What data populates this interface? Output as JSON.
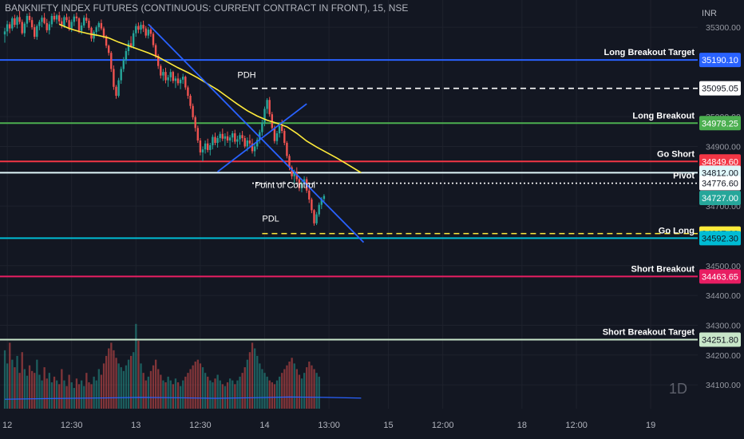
{
  "title": "BANKNIFTY INDEX FUTURES (CONTINUOUS: CURRENT CONTRACT IN FRONT), 15, NSE",
  "currency": "INR",
  "interval_watermark": "1D",
  "colors": {
    "background": "#131722",
    "grid": "#1e222d",
    "axis_text": "#b2b5be",
    "up": "#26a69a",
    "down": "#ef5350",
    "ma": "#ffeb3b",
    "trendline": "#2962ff",
    "volume_ma": "#2962ff"
  },
  "chart_data": {
    "type": "candlestick",
    "title": "BANKNIFTY INDEX FUTURES (CONTINUOUS: CURRENT CONTRACT IN FRONT), 15, NSE",
    "y_axis": {
      "ticks": [
        35300,
        35000,
        34900,
        34700,
        34500,
        34400,
        34300,
        34200,
        34100
      ],
      "tick_labels": [
        "35300.00",
        "35000.00",
        "34900.00",
        "34700.00",
        "34500.00",
        "34400.00",
        "34300.00",
        "34200.00",
        "34100.00"
      ],
      "ylim": [
        34020,
        35370
      ]
    },
    "x_axis": {
      "ticks": [
        "12",
        "12:30",
        "13",
        "12:30",
        "14",
        "13:00",
        "15",
        "12:00",
        "18",
        "12:00",
        "19"
      ],
      "tick_index": [
        1,
        27,
        53,
        79,
        105,
        131,
        155,
        177,
        209,
        231,
        261
      ]
    },
    "levels": [
      {
        "name": "Long Breakout Target",
        "value": 35190.1,
        "label": "35190.10",
        "color": "#2962ff",
        "style": "solid"
      },
      {
        "name": "PDH",
        "value": 35095.05,
        "label": "35095.05",
        "color": "#ffffff",
        "style": "dashed",
        "start_index": 100
      },
      {
        "name": "Long Breakout",
        "value": 34978.25,
        "label": "34978.25",
        "color": "#4caf50",
        "style": "solid"
      },
      {
        "name": "Go Short",
        "value": 34849.6,
        "label": "34849.60",
        "color": "#f23645",
        "style": "solid"
      },
      {
        "name": "",
        "value": 34812.0,
        "label": "34812.00",
        "color": "#e0f7fa",
        "style": "solid"
      },
      {
        "name": "Pivot",
        "value": 34776.6,
        "label": "34776.60",
        "color": "#ffffff",
        "style": "dotted",
        "start_index": 100
      },
      {
        "name": "",
        "value": 34727.0,
        "label": "34727.00",
        "color": "#26a69a",
        "style": "none"
      },
      {
        "name": "PDL",
        "value": 34607.6,
        "label": "34607.60",
        "color": "#ffeb3b",
        "style": "dashed",
        "start_index": 104
      },
      {
        "name": "Go Long",
        "value": 34592.3,
        "label": "34592.30",
        "color": "#00bcd4",
        "style": "solid"
      },
      {
        "name": "Short Breakout",
        "value": 34463.65,
        "label": "34463.65",
        "color": "#e91e63",
        "style": "solid"
      },
      {
        "name": "Short Breakout Target",
        "value": 34251.8,
        "label": "34251.80",
        "color": "#c8e6c9",
        "style": "solid"
      }
    ],
    "annotations": [
      {
        "text": "Point of Control",
        "index": 101,
        "value": 34760
      },
      {
        "text": "PDH",
        "index": 94,
        "value": 35130
      },
      {
        "text": "PDL",
        "index": 104,
        "value": 34648
      }
    ],
    "trendlines": [
      {
        "from": [
          58,
          35310
        ],
        "to": [
          145,
          34578
        ]
      },
      {
        "from": [
          86,
          34815
        ],
        "to": [
          122,
          35043
        ]
      }
    ],
    "candles": [
      [
        35276,
        35298,
        35248,
        35286
      ],
      [
        35286,
        35322,
        35270,
        35310
      ],
      [
        35310,
        35318,
        35280,
        35296
      ],
      [
        35296,
        35336,
        35288,
        35330
      ],
      [
        35330,
        35342,
        35300,
        35308
      ],
      [
        35308,
        35340,
        35296,
        35334
      ],
      [
        35334,
        35355,
        35310,
        35318
      ],
      [
        35318,
        35326,
        35275,
        35280
      ],
      [
        35280,
        35318,
        35268,
        35312
      ],
      [
        35312,
        35346,
        35300,
        35338
      ],
      [
        35338,
        35350,
        35316,
        35324
      ],
      [
        35324,
        35334,
        35292,
        35300
      ],
      [
        35300,
        35310,
        35260,
        35268
      ],
      [
        35268,
        35310,
        35258,
        35304
      ],
      [
        35304,
        35325,
        35290,
        35318
      ],
      [
        35318,
        35340,
        35300,
        35332
      ],
      [
        35332,
        35348,
        35310,
        35314
      ],
      [
        35314,
        35328,
        35282,
        35290
      ],
      [
        35290,
        35320,
        35276,
        35310
      ],
      [
        35310,
        35346,
        35300,
        35338
      ],
      [
        35338,
        35350,
        35318,
        35326
      ],
      [
        35326,
        35345,
        35312,
        35340
      ],
      [
        35340,
        35352,
        35310,
        35320
      ],
      [
        35320,
        35332,
        35296,
        35304
      ],
      [
        35304,
        35340,
        35298,
        35334
      ],
      [
        35334,
        35346,
        35316,
        35324
      ],
      [
        35324,
        35336,
        35288,
        35296
      ],
      [
        35296,
        35326,
        35284,
        35318
      ],
      [
        35318,
        35344,
        35304,
        35336
      ],
      [
        35336,
        35349,
        35320,
        35330
      ],
      [
        35330,
        35334,
        35280,
        35288
      ],
      [
        35288,
        35316,
        35276,
        35306
      ],
      [
        35306,
        35340,
        35298,
        35332
      ],
      [
        35332,
        35346,
        35314,
        35322
      ],
      [
        35322,
        35330,
        35290,
        35298
      ],
      [
        35298,
        35302,
        35252,
        35262
      ],
      [
        35262,
        35290,
        35250,
        35284
      ],
      [
        35284,
        35306,
        35270,
        35300
      ],
      [
        35300,
        35320,
        35286,
        35314
      ],
      [
        35314,
        35326,
        35290,
        35296
      ],
      [
        35296,
        35302,
        35262,
        35270
      ],
      [
        35270,
        35274,
        35230,
        35238
      ],
      [
        35238,
        35242,
        35205,
        35214
      ],
      [
        35214,
        35220,
        35150,
        35160
      ],
      [
        35160,
        35172,
        35090,
        35100
      ],
      [
        35100,
        35106,
        35060,
        35070
      ],
      [
        35070,
        35130,
        35064,
        35122
      ],
      [
        35122,
        35168,
        35110,
        35160
      ],
      [
        35160,
        35200,
        35150,
        35190
      ],
      [
        35190,
        35230,
        35176,
        35220
      ],
      [
        35220,
        35256,
        35206,
        35246
      ],
      [
        35246,
        35270,
        35230,
        35236
      ],
      [
        35236,
        35290,
        35228,
        35280
      ],
      [
        35280,
        35312,
        35268,
        35304
      ],
      [
        35304,
        35316,
        35280,
        35292
      ],
      [
        35292,
        35318,
        35278,
        35308
      ],
      [
        35308,
        35322,
        35284,
        35296
      ],
      [
        35296,
        35304,
        35264,
        35272
      ],
      [
        35272,
        35300,
        35262,
        35292
      ],
      [
        35292,
        35306,
        35268,
        35278
      ],
      [
        35278,
        35284,
        35232,
        35240
      ],
      [
        35240,
        35246,
        35196,
        35204
      ],
      [
        35204,
        35210,
        35160,
        35170
      ],
      [
        35170,
        35176,
        35128,
        35138
      ],
      [
        35138,
        35160,
        35120,
        35150
      ],
      [
        35150,
        35164,
        35112,
        35122
      ],
      [
        35122,
        35140,
        35100,
        35132
      ],
      [
        35132,
        35160,
        35118,
        35150
      ],
      [
        35150,
        35154,
        35112,
        35120
      ],
      [
        35120,
        35136,
        35096,
        35128
      ],
      [
        35128,
        35146,
        35104,
        35112
      ],
      [
        35112,
        35130,
        35092,
        35124
      ],
      [
        35124,
        35144,
        35110,
        35134
      ],
      [
        35134,
        35138,
        35090,
        35098
      ],
      [
        35098,
        35104,
        35060,
        35070
      ],
      [
        35070,
        35076,
        35026,
        35036
      ],
      [
        35036,
        35044,
        34990,
        34998
      ],
      [
        34998,
        35004,
        34950,
        34962
      ],
      [
        34962,
        34970,
        34912,
        34920
      ],
      [
        34920,
        34928,
        34870,
        34880
      ],
      [
        34880,
        34900,
        34850,
        34890
      ],
      [
        34890,
        34920,
        34876,
        34910
      ],
      [
        34910,
        34926,
        34880,
        34888
      ],
      [
        34888,
        34912,
        34870,
        34904
      ],
      [
        34904,
        34940,
        34890,
        34932
      ],
      [
        34932,
        34946,
        34904,
        34912
      ],
      [
        34912,
        34936,
        34896,
        34928
      ],
      [
        34928,
        34950,
        34914,
        34942
      ],
      [
        34942,
        34960,
        34918,
        34926
      ],
      [
        34926,
        34944,
        34902,
        34934
      ],
      [
        34934,
        34950,
        34912,
        34920
      ],
      [
        34920,
        34938,
        34896,
        34930
      ],
      [
        34930,
        34952,
        34914,
        34944
      ],
      [
        34944,
        34956,
        34908,
        34916
      ],
      [
        34916,
        34936,
        34896,
        34924
      ],
      [
        34924,
        34946,
        34906,
        34938
      ],
      [
        34938,
        34952,
        34916,
        34928
      ],
      [
        34928,
        34936,
        34894,
        34900
      ],
      [
        34900,
        34930,
        34884,
        34920
      ],
      [
        34920,
        34940,
        34898,
        34910
      ],
      [
        34910,
        34926,
        34876,
        34884
      ],
      [
        34884,
        34910,
        34866,
        34900
      ],
      [
        34900,
        34930,
        34890,
        34922
      ],
      [
        34922,
        34956,
        34910,
        34948
      ],
      [
        34948,
        34990,
        34936,
        34980
      ],
      [
        34980,
        35034,
        34968,
        35026
      ],
      [
        35026,
        35062,
        35010,
        35056
      ],
      [
        35056,
        35066,
        35000,
        35008
      ],
      [
        35008,
        35016,
        34954,
        34962
      ],
      [
        34962,
        34970,
        34910,
        34918
      ],
      [
        34918,
        34952,
        34906,
        34944
      ],
      [
        34944,
        34976,
        34930,
        34968
      ],
      [
        34968,
        34990,
        34944,
        34952
      ],
      [
        34952,
        34960,
        34904,
        34912
      ],
      [
        34912,
        34918,
        34860,
        34868
      ],
      [
        34868,
        34874,
        34820,
        34830
      ],
      [
        34830,
        34836,
        34790,
        34800
      ],
      [
        34800,
        34822,
        34776,
        34812
      ],
      [
        34812,
        34830,
        34782,
        34790
      ],
      [
        34790,
        34796,
        34750,
        34760
      ],
      [
        34760,
        34784,
        34746,
        34776
      ],
      [
        34776,
        34800,
        34762,
        34790
      ],
      [
        34790,
        34798,
        34744,
        34752
      ],
      [
        34752,
        34760,
        34710,
        34722
      ],
      [
        34722,
        34728,
        34676,
        34686
      ],
      [
        34686,
        34690,
        34634,
        34642
      ],
      [
        34642,
        34680,
        34636,
        34672
      ],
      [
        34672,
        34712,
        34664,
        34704
      ],
      [
        34704,
        34730,
        34690,
        34724
      ],
      [
        34724,
        34740,
        34712,
        34734
      ]
    ],
    "ma_line": [
      [
        22,
        35310
      ],
      [
        26,
        35296
      ],
      [
        30,
        35286
      ],
      [
        34,
        35278
      ],
      [
        38,
        35272
      ],
      [
        42,
        35264
      ],
      [
        46,
        35250
      ],
      [
        50,
        35238
      ],
      [
        54,
        35226
      ],
      [
        58,
        35214
      ],
      [
        62,
        35200
      ],
      [
        66,
        35182
      ],
      [
        70,
        35164
      ],
      [
        74,
        35148
      ],
      [
        78,
        35130
      ],
      [
        82,
        35110
      ],
      [
        86,
        35090
      ],
      [
        90,
        35066
      ],
      [
        94,
        35042
      ],
      [
        98,
        35020
      ],
      [
        102,
        35002
      ],
      [
        106,
        34988
      ],
      [
        110,
        34978
      ],
      [
        114,
        34966
      ],
      [
        118,
        34944
      ],
      [
        122,
        34918
      ],
      [
        126,
        34898
      ],
      [
        130,
        34880
      ],
      [
        134,
        34862
      ],
      [
        138,
        34842
      ],
      [
        142,
        34822
      ],
      [
        144,
        34812
      ]
    ],
    "volume_ylim": [
      0,
      1000
    ],
    "volume": [
      620,
      480,
      700,
      520,
      440,
      560,
      380,
      600,
      420,
      350,
      460,
      400,
      380,
      520,
      360,
      300,
      440,
      320,
      380,
      280,
      340,
      300,
      260,
      420,
      300,
      240,
      360,
      280,
      220,
      320,
      260,
      300,
      240,
      380,
      280,
      260,
      340,
      300,
      420,
      360,
      480,
      560,
      640,
      700,
      620,
      540,
      480,
      440,
      400,
      460,
      520,
      560,
      600,
      900,
      720,
      480,
      380,
      300,
      340,
      400,
      460,
      520,
      420,
      360,
      300,
      280,
      340,
      300,
      260,
      320,
      280,
      240,
      300,
      340,
      380,
      420,
      460,
      500,
      520,
      480,
      440,
      380,
      340,
      300,
      280,
      320,
      360,
      300,
      260,
      240,
      280,
      320,
      300,
      260,
      300,
      340,
      380,
      440,
      520,
      600,
      700,
      640,
      560,
      480,
      420,
      380,
      340,
      300,
      280,
      260,
      300,
      340,
      380,
      420,
      460,
      500,
      540,
      480,
      420,
      360,
      320,
      380,
      440,
      500,
      460,
      420,
      380,
      340
    ],
    "volume_ma": [
      [
        0,
        100
      ],
      [
        20,
        108
      ],
      [
        40,
        114
      ],
      [
        55,
        120
      ],
      [
        70,
        116
      ],
      [
        85,
        110
      ],
      [
        100,
        116
      ],
      [
        115,
        124
      ],
      [
        130,
        120
      ],
      [
        144,
        112
      ]
    ]
  }
}
